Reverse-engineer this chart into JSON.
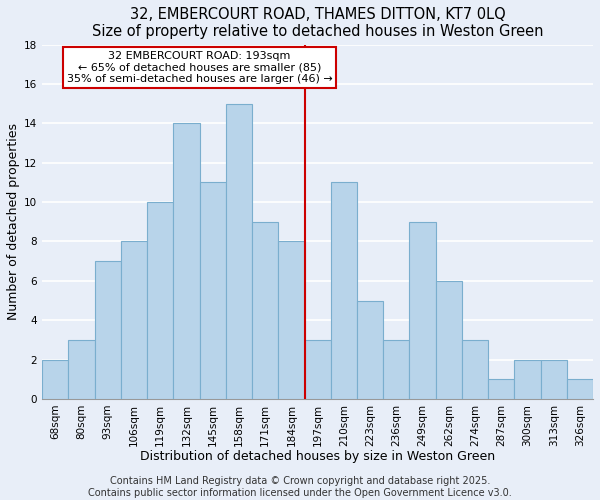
{
  "title1": "32, EMBERCOURT ROAD, THAMES DITTON, KT7 0LQ",
  "title2": "Size of property relative to detached houses in Weston Green",
  "xlabel": "Distribution of detached houses by size in Weston Green",
  "ylabel": "Number of detached properties",
  "bar_labels": [
    "68sqm",
    "80sqm",
    "93sqm",
    "106sqm",
    "119sqm",
    "132sqm",
    "145sqm",
    "158sqm",
    "171sqm",
    "184sqm",
    "197sqm",
    "210sqm",
    "223sqm",
    "236sqm",
    "249sqm",
    "262sqm",
    "274sqm",
    "287sqm",
    "300sqm",
    "313sqm",
    "326sqm"
  ],
  "bar_values": [
    2,
    3,
    7,
    8,
    10,
    14,
    11,
    15,
    9,
    8,
    3,
    11,
    5,
    3,
    9,
    6,
    3,
    1,
    2,
    2,
    1
  ],
  "bar_color": "#b8d4ea",
  "bar_edgecolor": "#7aaece",
  "vline_color": "#cc0000",
  "annotation_text": "32 EMBERCOURT ROAD: 193sqm\n← 65% of detached houses are smaller (85)\n35% of semi-detached houses are larger (46) →",
  "annotation_box_edgecolor": "#cc0000",
  "annotation_box_facecolor": "white",
  "ylim": [
    0,
    18
  ],
  "yticks": [
    0,
    2,
    4,
    6,
    8,
    10,
    12,
    14,
    16,
    18
  ],
  "footer1": "Contains HM Land Registry data © Crown copyright and database right 2025.",
  "footer2": "Contains public sector information licensed under the Open Government Licence v3.0.",
  "background_color": "#e8eef8",
  "grid_color": "white",
  "title_fontsize": 10.5,
  "axis_label_fontsize": 9,
  "tick_fontsize": 7.5,
  "annotation_fontsize": 8,
  "footer_fontsize": 7
}
